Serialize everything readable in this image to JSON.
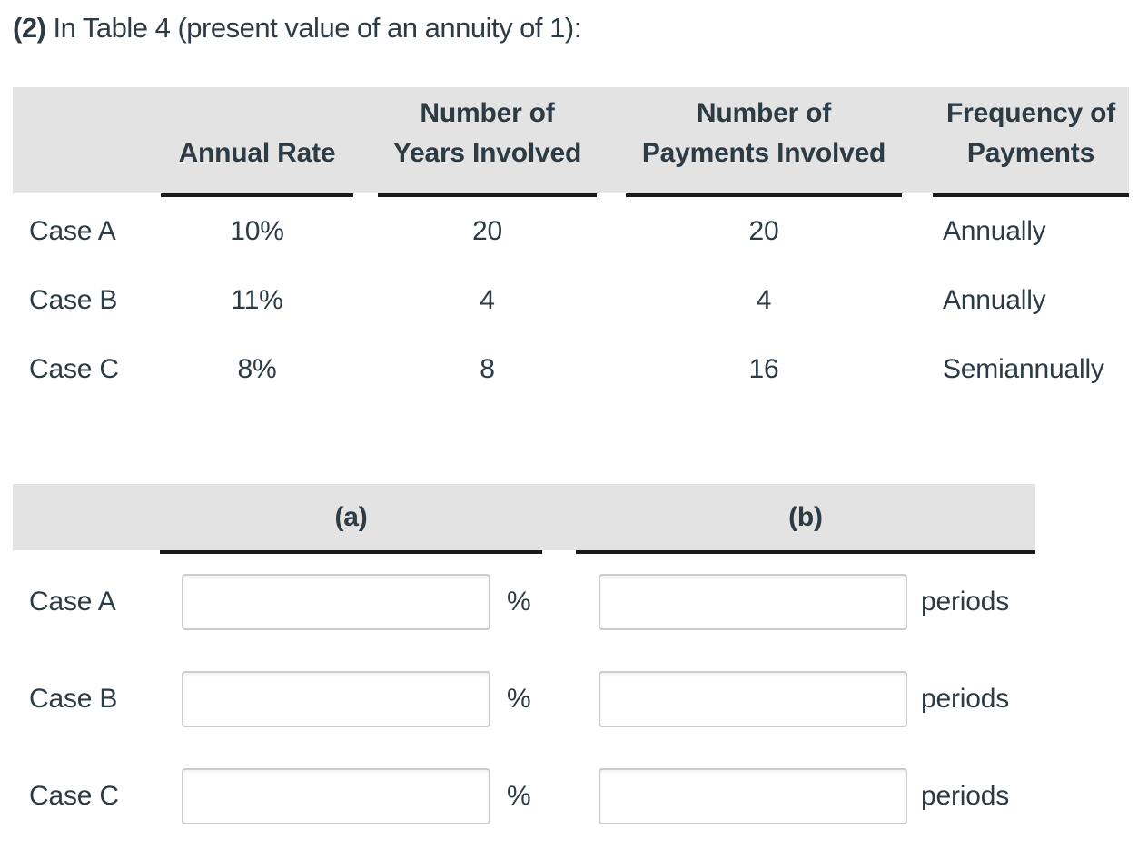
{
  "title": {
    "number": "(2)",
    "text": " In Table 4 (present value of an annuity of 1):"
  },
  "colors": {
    "header_bg": "#e3e3e3",
    "text_primary": "#2d3b45",
    "underline": "#1a1a1a",
    "input_border": "#cccccc",
    "input_bg": "#ffffff"
  },
  "info_table": {
    "headers": [
      {
        "line1": "",
        "line2": "Annual Rate"
      },
      {
        "line1": "Number of",
        "line2": "Years Involved"
      },
      {
        "line1": "Number of",
        "line2": "Payments Involved"
      },
      {
        "line1": "Frequency of",
        "line2": "Payments"
      }
    ],
    "rows": [
      {
        "case": "Case A",
        "annual_rate": "10%",
        "years_involved": "20",
        "payments_involved": "20",
        "frequency": "Annually"
      },
      {
        "case": "Case B",
        "annual_rate": "11%",
        "years_involved": "4",
        "payments_involved": "4",
        "frequency": "Annually"
      },
      {
        "case": "Case C",
        "annual_rate": "8%",
        "years_involved": "8",
        "payments_involved": "16",
        "frequency": "Semiannually"
      }
    ]
  },
  "answer_table": {
    "headers": {
      "a": "(a)",
      "b": "(b)"
    },
    "rows": [
      {
        "case": "Case A",
        "a_value": "",
        "a_unit": "%",
        "b_value": "",
        "b_unit": "periods"
      },
      {
        "case": "Case B",
        "a_value": "",
        "a_unit": "%",
        "b_value": "",
        "b_unit": "periods"
      },
      {
        "case": "Case C",
        "a_value": "",
        "a_unit": "%",
        "b_value": "",
        "b_unit": "periods"
      }
    ]
  }
}
